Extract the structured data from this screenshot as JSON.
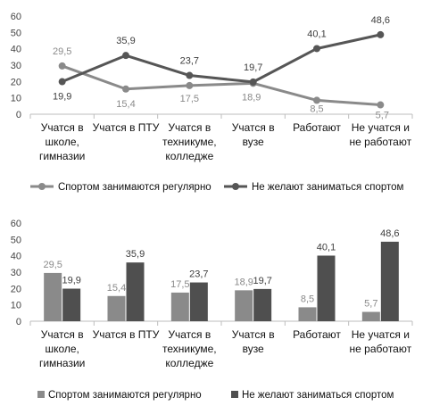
{
  "chart_data": [
    {
      "type": "line",
      "categories": [
        [
          "Учатся в",
          "школе,",
          "гимназии"
        ],
        [
          "Учатся в ПТУ"
        ],
        [
          "Учатся в",
          "техникуме,",
          "колледже"
        ],
        [
          "Учатся в",
          "вузе"
        ],
        [
          "Работают"
        ],
        [
          "Не учатся и",
          "не работают"
        ]
      ],
      "ylim": [
        0,
        60
      ],
      "yticks": [
        "0",
        "10",
        "20",
        "30",
        "40",
        "50",
        "60"
      ],
      "grid": false,
      "legend_position": "bottom",
      "series": [
        {
          "name": "Спортом занимаются регулярно",
          "values": [
            29.5,
            15.4,
            17.5,
            18.9,
            8.5,
            5.7
          ],
          "labels": [
            "29,5",
            "15,4",
            "17,5",
            "18,9",
            "8,5",
            "5,7"
          ],
          "color": "#8a8a8a"
        },
        {
          "name": "Не желают заниматься спортом",
          "values": [
            19.9,
            35.9,
            23.7,
            19.7,
            40.1,
            48.6
          ],
          "labels": [
            "19,9",
            "35,9",
            "23,7",
            "19,7",
            "40,1",
            "48,6"
          ],
          "color": "#565656"
        }
      ]
    },
    {
      "type": "bar",
      "categories": [
        [
          "Учатся в",
          "школе,",
          "гимназии"
        ],
        [
          "Учатся в ПТУ"
        ],
        [
          "Учатся в",
          "техникуме,",
          "колледже"
        ],
        [
          "Учатся в",
          "вузе"
        ],
        [
          "Работают"
        ],
        [
          "Не учатся и",
          "не работают"
        ]
      ],
      "ylim": [
        0,
        60
      ],
      "yticks": [
        "0",
        "10",
        "20",
        "30",
        "40",
        "50",
        "60"
      ],
      "grid": false,
      "legend_position": "bottom",
      "series": [
        {
          "name": "Спортом занимаются регулярно",
          "values": [
            29.5,
            15.4,
            17.5,
            18.9,
            8.5,
            5.7
          ],
          "labels": [
            "29,5",
            "15,4",
            "17,5",
            "18,9",
            "8,5",
            "5,7"
          ],
          "color": "#8a8a8a"
        },
        {
          "name": "Не желают заниматься спортом",
          "values": [
            19.9,
            35.9,
            23.7,
            19.7,
            40.1,
            48.6
          ],
          "labels": [
            "19,9",
            "35,9",
            "23,7",
            "19,7",
            "40,1",
            "48,6"
          ],
          "color": "#4f4f4f"
        }
      ]
    }
  ]
}
